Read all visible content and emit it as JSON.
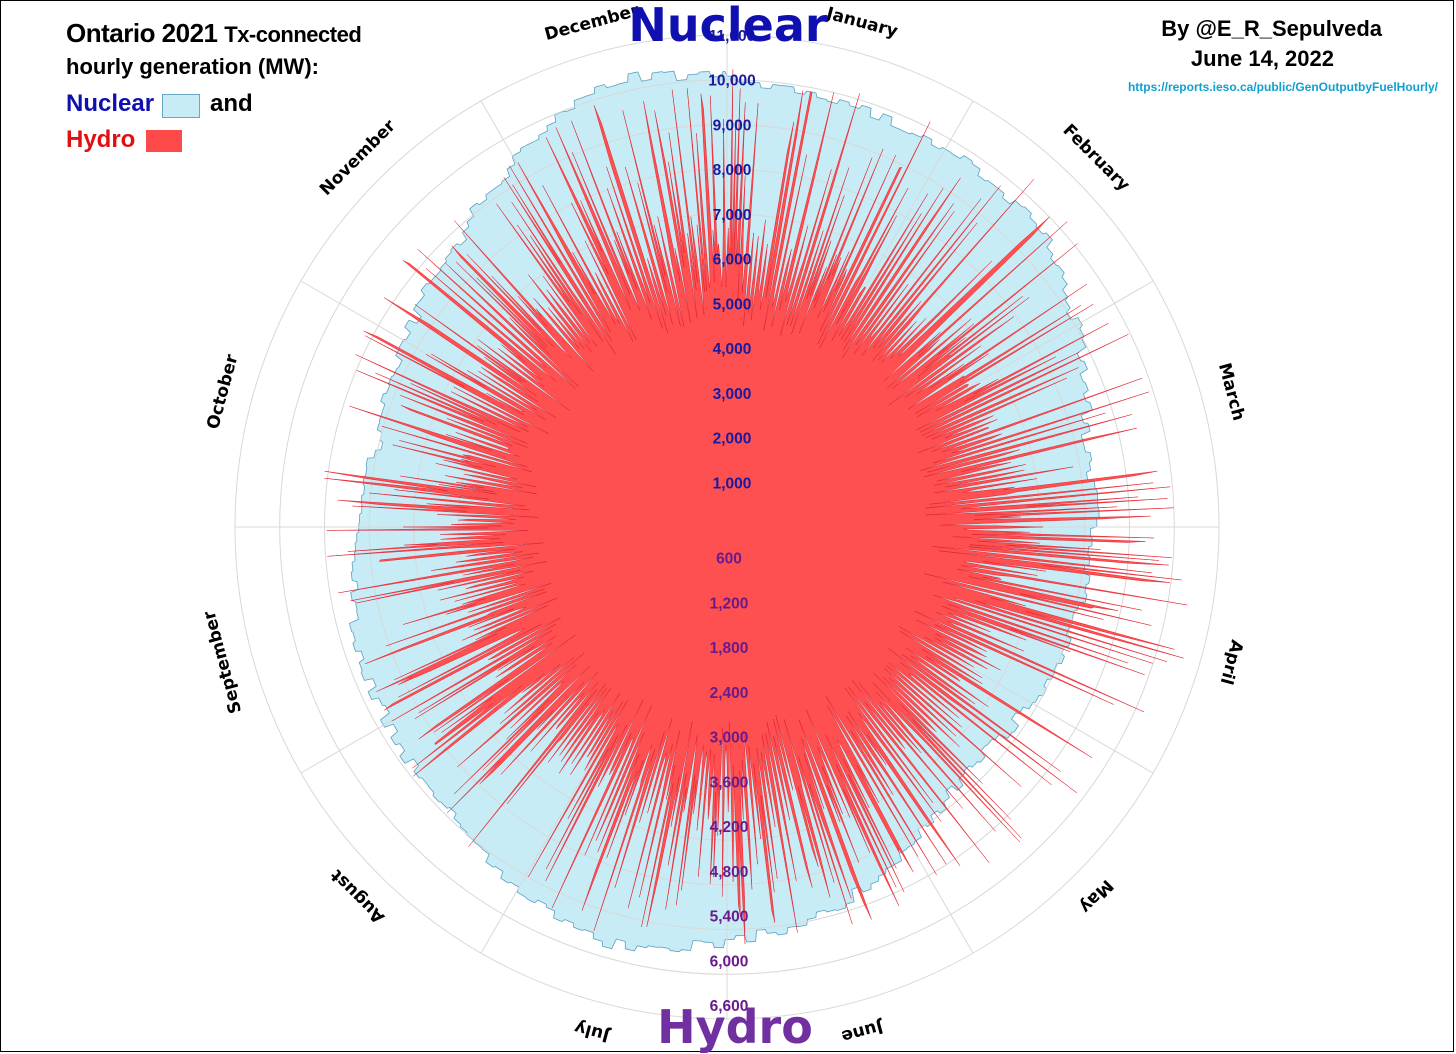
{
  "header": {
    "title_main": "Ontario 2021",
    "title_sub": "Tx-connected",
    "title_line2": "hourly generation (MW):",
    "legend_nuclear": "Nuclear",
    "legend_and": "and",
    "legend_hydro": "Hydro",
    "author": "By @E_R_Sepulveda",
    "date": "June 14, 2022",
    "source": "https://reports.ieso.ca/public/GenOutputbyFuelHourly/"
  },
  "labels": {
    "top": "Nuclear",
    "bottom": "Hydro"
  },
  "colors": {
    "nuclear_fill": "#c8ecf6",
    "nuclear_edge": "#5aa0c0",
    "hydro_fill": "#ff4a4a",
    "hydro_edge": "#e01020",
    "nuclear_axis_text": "#1a1aa0",
    "hydro_axis_text": "#6a1a8a",
    "grid": "#d8d8d8"
  },
  "chart_data": {
    "type": "area",
    "coordinate_system": "polar",
    "direction": "clockwise",
    "year": 2021,
    "months": [
      "January",
      "February",
      "March",
      "April",
      "May",
      "June",
      "July",
      "August",
      "September",
      "October",
      "November",
      "December"
    ],
    "nuclear_axis": {
      "ticks": [
        1000,
        2000,
        3000,
        4000,
        5000,
        6000,
        7000,
        8000,
        9000,
        10000,
        11000
      ],
      "tick_labels": [
        "1,000",
        "2,000",
        "3,000",
        "4,000",
        "5,000",
        "6,000",
        "7,000",
        "8,000",
        "9,000",
        "10,000",
        "11,000"
      ],
      "range": [
        0,
        11000
      ]
    },
    "hydro_axis": {
      "ticks": [
        600,
        1200,
        1800,
        2400,
        3000,
        3600,
        4200,
        4800,
        5400,
        6000,
        6600
      ],
      "tick_labels": [
        "600",
        "1,200",
        "1,800",
        "2,400",
        "3,000",
        "3,600",
        "4,200",
        "4,800",
        "5,400",
        "6,000",
        "6,600"
      ],
      "range": [
        0,
        6600
      ]
    },
    "series": [
      {
        "name": "Nuclear",
        "unit": "MW",
        "monthly_typical": [
          9800,
          9700,
          8300,
          8100,
          7600,
          8900,
          9700,
          8900,
          8600,
          8000,
          8700,
          10300
        ]
      },
      {
        "name": "Hydro",
        "unit": "MW",
        "monthly_typical": [
          3700,
          3800,
          3800,
          3800,
          3800,
          3700,
          3700,
          3600,
          3500,
          3600,
          3800,
          3800
        ],
        "monthly_peak": [
          6200,
          6300,
          6000,
          6400,
          6000,
          5600,
          5800,
          5500,
          5400,
          5500,
          5800,
          6100
        ]
      }
    ]
  }
}
